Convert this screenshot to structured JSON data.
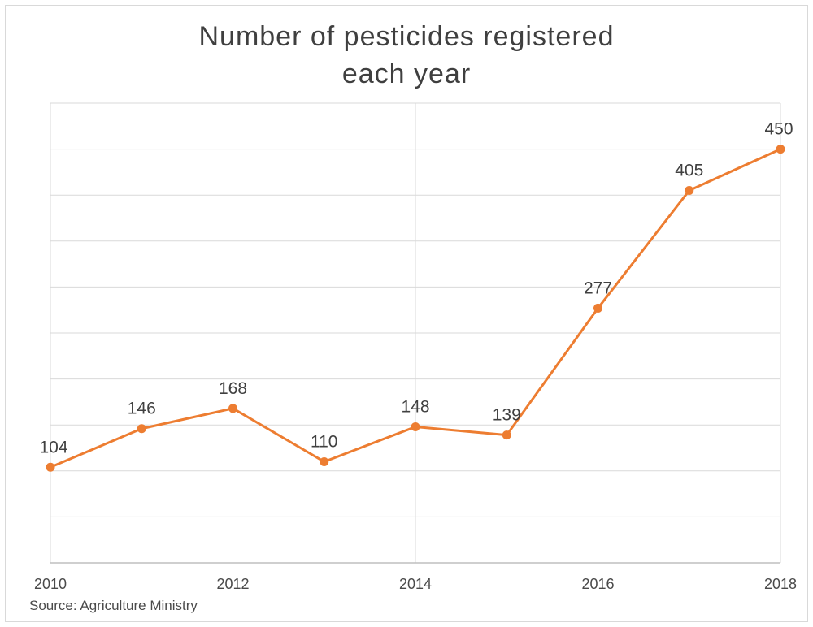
{
  "title_lines": [
    "Number of pesticides registered",
    "each year"
  ],
  "source": "Source: Agriculture Ministry",
  "colors": {
    "line": "#ed7d31",
    "grid": "#d9d9d9",
    "axis": "#bfbfbf"
  },
  "chart_data": {
    "type": "line",
    "title": "Number of pesticides registered each year",
    "xlabel": "",
    "ylabel": "",
    "x": [
      2010,
      2011,
      2012,
      2013,
      2014,
      2015,
      2016,
      2017,
      2018
    ],
    "x_tick_labels": [
      "2010",
      "2012",
      "2014",
      "2016",
      "2018"
    ],
    "xlim": [
      2010,
      2018
    ],
    "ylim": [
      0,
      500
    ],
    "y_gridlines": [
      50,
      100,
      150,
      200,
      250,
      300,
      350,
      400,
      450,
      500
    ],
    "grid": true,
    "legend": "none",
    "series": [
      {
        "values": [
          104,
          146,
          168,
          110,
          148,
          139,
          277,
          405,
          450
        ],
        "data_labels": [
          "104",
          "146",
          "168",
          "110",
          "148",
          "139",
          "277",
          "405",
          "450"
        ]
      }
    ]
  }
}
